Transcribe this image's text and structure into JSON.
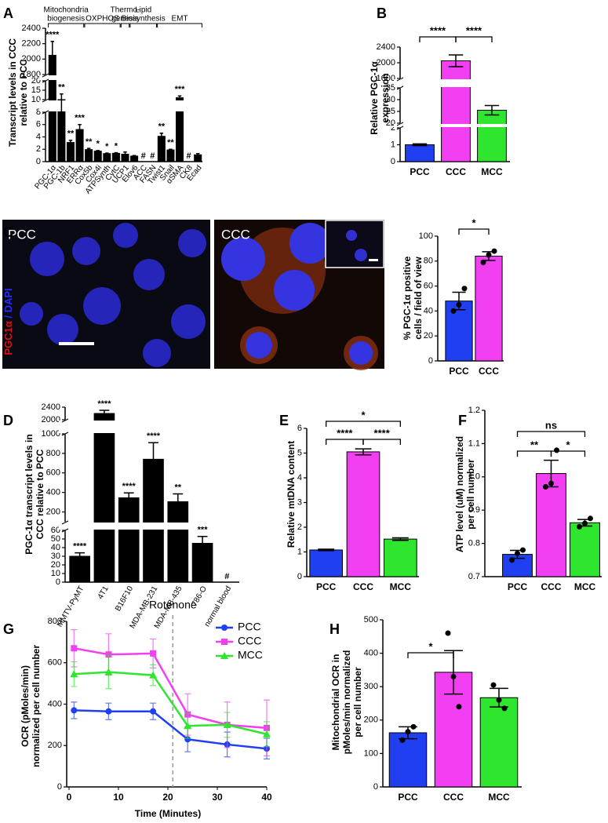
{
  "chart_data": [
    {
      "type": "bar",
      "panel": "A",
      "ylabel": [
        "Transcript levels in CCC",
        "relative to PCC"
      ],
      "groups": [
        {
          "label": [
            "Mitochondria",
            "biogenesis"
          ],
          "from": "PGC-1α",
          "to": "ERRα"
        },
        {
          "label": [
            "OXPHOS"
          ],
          "from": "Cox5b",
          "to": "CytC"
        },
        {
          "label": [
            "Thermo-",
            "genesis"
          ],
          "from": "UCP1",
          "to": "UCP1"
        },
        {
          "label": [
            "Lipid",
            "Biosynthesis"
          ],
          "from": "Elov6",
          "to": "FASN"
        },
        {
          "label": [
            "EMT"
          ],
          "from": "Twist1",
          "to": "Ecad"
        }
      ],
      "categories": [
        "PGC-1α",
        "PGC-1b",
        "NRF1",
        "ERRα",
        "Cox5b",
        "Cox4i",
        "ATPSynth",
        "CytC",
        "UCP1",
        "Elov6",
        "ACC",
        "FASN",
        "Twist1",
        "Snail",
        "αSMA",
        "CK8",
        "Ecad"
      ],
      "values": [
        2050,
        10,
        3.1,
        5.2,
        1.95,
        1.7,
        1.3,
        1.35,
        1.2,
        0.9,
        null,
        null,
        4.1,
        1.9,
        11,
        null,
        1.1
      ],
      "errors": [
        180,
        3,
        0.35,
        0.8,
        0.2,
        0.1,
        0.08,
        0.1,
        0.35,
        0.08,
        null,
        null,
        0.5,
        0.1,
        1,
        null,
        0.2
      ],
      "annotations": [
        "****",
        "**",
        "**",
        "***",
        "**",
        "*",
        "*",
        "*",
        null,
        null,
        "#",
        "#",
        "**",
        "**",
        "***",
        "#",
        null
      ],
      "color": "#000000",
      "y_segments": [
        {
          "ylim": [
            0,
            8
          ],
          "yticks": [
            0,
            2,
            4,
            6,
            8
          ]
        },
        {
          "ylim": [
            10,
            20
          ],
          "yticks": [
            10,
            15,
            20
          ]
        },
        {
          "ylim": [
            1800,
            2400
          ],
          "yticks": [
            1800,
            2000,
            2200,
            2400
          ]
        }
      ]
    },
    {
      "type": "bar",
      "panel": "B",
      "ylabel": [
        "Relative PGC-1α",
        "expression"
      ],
      "categories": [
        "PCC",
        "CCC",
        "MCC"
      ],
      "values": [
        1.0,
        2050,
        25.5
      ],
      "errors": [
        0.05,
        150,
        2
      ],
      "colors": [
        "#1f3ff0",
        "#f23ff2",
        "#2ee62e"
      ],
      "y_segments": [
        {
          "ylim": [
            0,
            2
          ],
          "yticks": [
            0,
            1,
            2
          ]
        },
        {
          "ylim": [
            20,
            35
          ],
          "yticks": [
            20,
            25,
            30,
            35
          ]
        },
        {
          "ylim": [
            1600,
            2400
          ],
          "yticks": [
            1600,
            2000,
            2400
          ]
        }
      ],
      "comparisons": [
        {
          "from": "PCC",
          "to": "CCC",
          "label": "****"
        },
        {
          "from": "CCC",
          "to": "MCC",
          "label": "****"
        }
      ]
    },
    {
      "type": "bar",
      "panel": "C",
      "ylabel": [
        "% PGC-1α positive",
        "cells / field of view"
      ],
      "categories": [
        "PCC",
        "CCC"
      ],
      "values": [
        48,
        84
      ],
      "errors": [
        7,
        3.5
      ],
      "points": [
        [
          40,
          45,
          58
        ],
        [
          79,
          85,
          88
        ]
      ],
      "colors": [
        "#1f3ff0",
        "#f23ff2"
      ],
      "ylim": [
        0,
        100
      ],
      "yticks": [
        0,
        20,
        40,
        60,
        80,
        100
      ],
      "comparisons": [
        {
          "from": "PCC",
          "to": "CCC",
          "label": "*"
        }
      ]
    },
    {
      "type": "bar",
      "panel": "D",
      "ylabel": [
        "PGC-1α transcript levels in",
        "CCC relative to PCC"
      ],
      "categories": [
        "MMTV-PyMT",
        "4T1",
        "B16F10",
        "MDA-MB-231",
        "MDA-MB-435",
        "786-O",
        "normal blood"
      ],
      "values": [
        30,
        2200,
        345,
        740,
        305,
        45,
        null
      ],
      "errors": [
        4,
        100,
        50,
        170,
        80,
        8,
        null
      ],
      "annotations": [
        "****",
        "****",
        "****",
        "****",
        "**",
        "***",
        "#"
      ],
      "color": "#000000",
      "y_segments": [
        {
          "ylim": [
            0,
            60
          ],
          "yticks": [
            0,
            10,
            20,
            30,
            40,
            50,
            60
          ]
        },
        {
          "ylim": [
            100,
            1000
          ],
          "yticks": [
            200,
            400,
            600,
            800,
            1000
          ]
        },
        {
          "ylim": [
            2000,
            2400
          ],
          "yticks": [
            2000,
            2400
          ]
        }
      ]
    },
    {
      "type": "bar",
      "panel": "E",
      "ylabel": [
        "Relative mtDNA content"
      ],
      "categories": [
        "PCC",
        "CCC",
        "MCC"
      ],
      "values": [
        1.08,
        5.05,
        1.52
      ],
      "errors": [
        0.03,
        0.12,
        0.05
      ],
      "colors": [
        "#1f3ff0",
        "#f23ff2",
        "#2ee62e"
      ],
      "ylim": [
        0,
        6
      ],
      "yticks": [
        0,
        1,
        2,
        3,
        4,
        5,
        6
      ],
      "comparisons": [
        {
          "from": "PCC",
          "to": "CCC",
          "label": "****"
        },
        {
          "from": "CCC",
          "to": "MCC",
          "label": "****"
        },
        {
          "from": "PCC",
          "to": "MCC",
          "label": "*"
        }
      ]
    },
    {
      "type": "bar",
      "panel": "F",
      "ylabel": [
        "ATP level (uM) normalized",
        "per cell number"
      ],
      "categories": [
        "PCC",
        "CCC",
        "MCC"
      ],
      "values": [
        0.767,
        1.01,
        0.862
      ],
      "errors": [
        0.012,
        0.04,
        0.01
      ],
      "points": [
        [
          0.75,
          0.77,
          0.78
        ],
        [
          0.97,
          0.98,
          1.08
        ],
        [
          0.85,
          0.86,
          0.875
        ]
      ],
      "colors": [
        "#1f3ff0",
        "#f23ff2",
        "#2ee62e"
      ],
      "ylim": [
        0.7,
        1.2
      ],
      "yticks": [
        0.7,
        0.8,
        0.9,
        {
          "value": 1,
          "label": "1.0"
        },
        1.1,
        1.2
      ],
      "comparisons": [
        {
          "from": "PCC",
          "to": "CCC",
          "label": "**"
        },
        {
          "from": "CCC",
          "to": "MCC",
          "label": "*"
        },
        {
          "from": "PCC",
          "to": "MCC",
          "label": "ns"
        }
      ]
    },
    {
      "type": "line",
      "panel": "G",
      "ylabel": [
        "OCR (pMoles/min)",
        "normalized per cell number"
      ],
      "xlabel": "Time (Minutes)",
      "x": [
        1,
        8,
        17,
        24,
        32,
        40
      ],
      "series": [
        {
          "name": "PCC",
          "color": "#1f3ff0",
          "marker": "circle",
          "values": [
            370,
            365,
            365,
            230,
            205,
            185
          ],
          "errors": [
            40,
            40,
            40,
            60,
            60,
            50
          ]
        },
        {
          "name": "CCC",
          "color": "#f23ff2",
          "marker": "square",
          "values": [
            670,
            640,
            645,
            350,
            300,
            285
          ],
          "errors": [
            90,
            100,
            70,
            100,
            110,
            135
          ]
        },
        {
          "name": "MCC",
          "color": "#2ee62e",
          "marker": "triangle",
          "values": [
            545,
            555,
            540,
            295,
            300,
            255
          ],
          "errors": [
            60,
            80,
            50,
            60,
            60,
            60
          ]
        }
      ],
      "xlim": [
        0,
        40
      ],
      "xticks": [
        0,
        10,
        20,
        30,
        40
      ],
      "ylim": [
        0,
        800
      ],
      "yticks": [
        0,
        200,
        400,
        600,
        800
      ],
      "annotation": {
        "x": 21,
        "label": "Rotenone"
      },
      "legend": "upper right"
    },
    {
      "type": "bar",
      "panel": "H",
      "ylabel": [
        "Mitochondrial OCR in",
        "pMoles/min normalized",
        "per cell number"
      ],
      "categories": [
        "PCC",
        "CCC",
        "MCC"
      ],
      "values": [
        162,
        343,
        267
      ],
      "errors": [
        18,
        65,
        28
      ],
      "points": [
        [
          140,
          165,
          180
        ],
        [
          460,
          330,
          240
        ],
        [
          305,
          260,
          235
        ]
      ],
      "colors": [
        "#1f3ff0",
        "#f23ff2",
        "#2ee62e"
      ],
      "ylim": [
        0,
        500
      ],
      "yticks": [
        0,
        100,
        200,
        300,
        400,
        500
      ],
      "comparisons": [
        {
          "from": "PCC",
          "to": "CCC",
          "label": "*"
        }
      ]
    }
  ],
  "image_panel": {
    "labels": [
      "PCC",
      "CCC"
    ],
    "stain": [
      "PGC1α",
      " / DAPI"
    ]
  }
}
